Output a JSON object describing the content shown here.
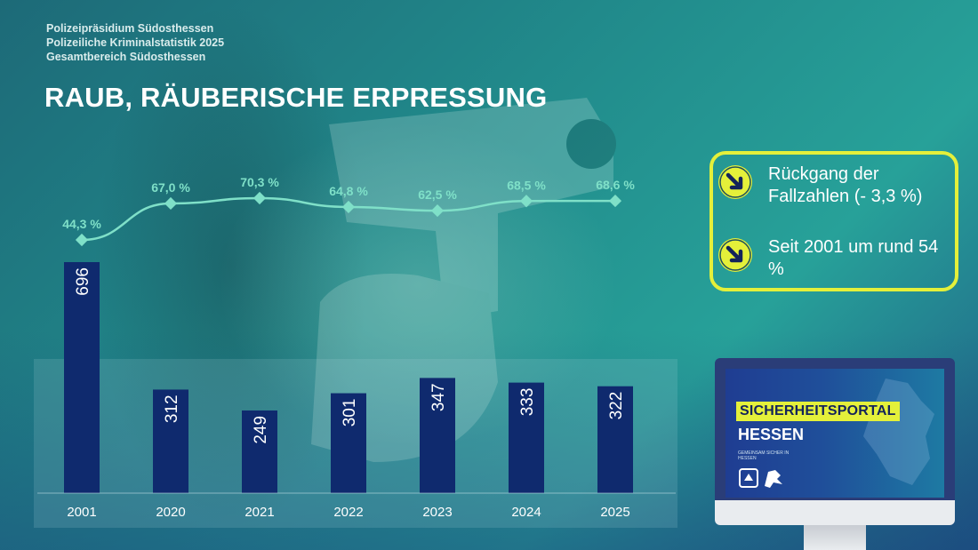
{
  "header": {
    "line1": "Polizeipräsidium Südosthessen",
    "line2": "Polizeiliche Kriminalstatistik 2025",
    "line3": "Gesamtbereich Südosthessen",
    "title": "RAUB, RÄUBERISCHE ERPRESSUNG"
  },
  "info_box": {
    "item1": "Rückgang der Fallzahlen (- 3,3 %)",
    "item2": "Seit 2001 um rund 54 %",
    "icon": "arrow-down-right-icon",
    "border_color": "#e4f03a"
  },
  "portal": {
    "tag": "SICHERHEITSPORTAL",
    "sub": "HESSEN",
    "small_text": "GEMEINSAM SICHER IN HESSEN"
  },
  "colors": {
    "bar": "#0f2a6e",
    "line": "#7fe0c8",
    "accent": "#e4f03a"
  },
  "chart_data": {
    "type": "bar",
    "categories": [
      "2001",
      "2020",
      "2021",
      "2022",
      "2023",
      "2024",
      "2025"
    ],
    "values": [
      696,
      312,
      249,
      301,
      347,
      333,
      322
    ],
    "value_labels": [
      "696",
      "312",
      "249",
      "301",
      "347",
      "333",
      "322"
    ],
    "line": {
      "type": "line",
      "values": [
        44.3,
        67.0,
        70.3,
        64.8,
        62.5,
        68.5,
        68.6
      ],
      "labels": [
        "44,3 %",
        "67,0 %",
        "70,3 %",
        "64,8 %",
        "62,5 %",
        "68,5 %",
        "68,6 %"
      ],
      "unit": "%"
    },
    "grid": false,
    "legend": "none"
  }
}
